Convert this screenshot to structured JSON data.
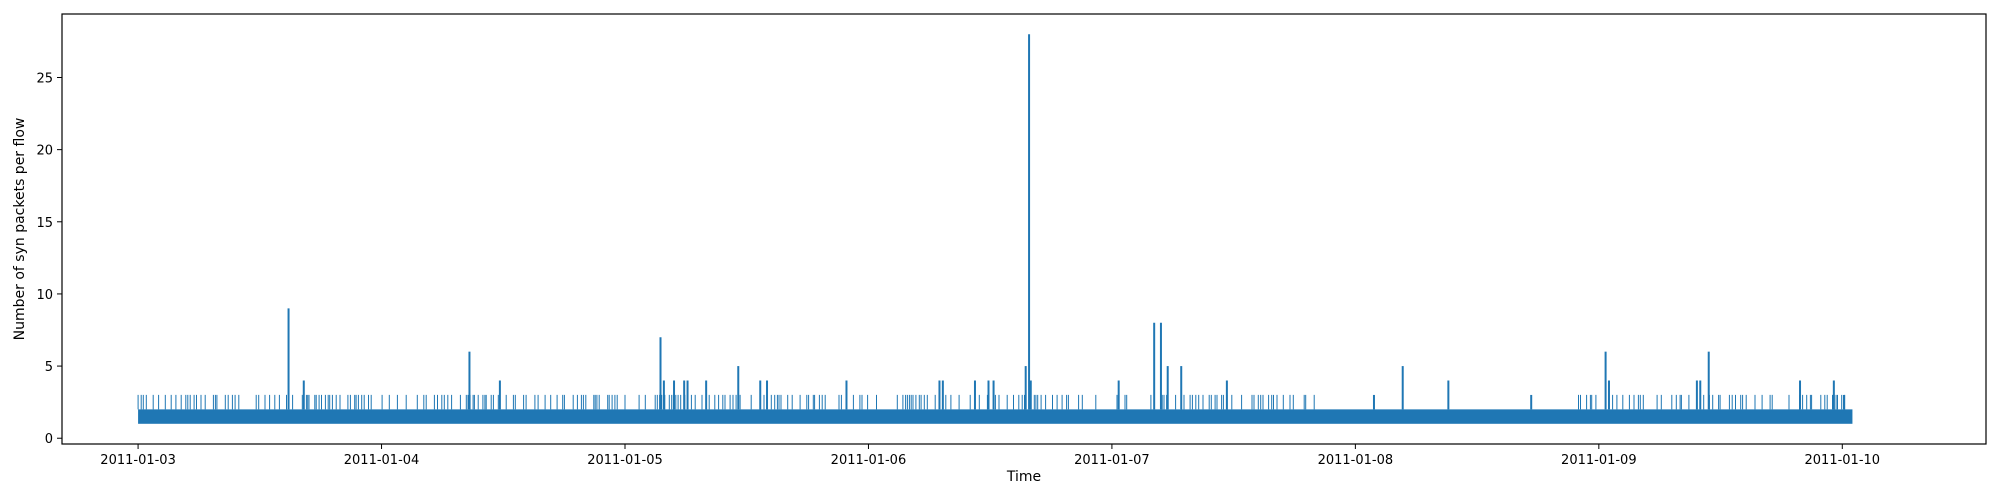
{
  "chart_data": {
    "type": "line",
    "title": "",
    "xlabel": "Time",
    "ylabel": "Number of syn packets per flow",
    "xlim": [
      "2011-01-02T16:30:00",
      "2011-01-10T14:10:00"
    ],
    "ylim": [
      -0.4,
      29.4
    ],
    "x_ticks": [
      "2011-01-03",
      "2011-01-04",
      "2011-01-05",
      "2011-01-06",
      "2011-01-07",
      "2011-01-08",
      "2011-01-09",
      "2011-01-10"
    ],
    "y_ticks": [
      0,
      5,
      10,
      15,
      20,
      25
    ],
    "grid": false,
    "legend": "none",
    "series": [
      {
        "color": "#1f77b4",
        "baseline_range": [
          1,
          2
        ],
        "baseline_period": [
          "2011-01-03T00:00:00",
          "2011-01-10T01:00:00"
        ],
        "peaks": [
          {
            "x": "2011-01-03T14:50:00",
            "y": 9
          },
          {
            "x": "2011-01-03T16:20:00",
            "y": 4
          },
          {
            "x": "2011-01-04T08:40:00",
            "y": 6
          },
          {
            "x": "2011-01-04T11:40:00",
            "y": 4
          },
          {
            "x": "2011-01-05T03:30:00",
            "y": 7
          },
          {
            "x": "2011-01-05T03:50:00",
            "y": 4
          },
          {
            "x": "2011-01-05T04:50:00",
            "y": 4
          },
          {
            "x": "2011-01-05T05:50:00",
            "y": 4
          },
          {
            "x": "2011-01-05T06:10:00",
            "y": 4
          },
          {
            "x": "2011-01-05T08:00:00",
            "y": 4
          },
          {
            "x": "2011-01-05T11:10:00",
            "y": 5
          },
          {
            "x": "2011-01-05T13:20:00",
            "y": 4
          },
          {
            "x": "2011-01-05T14:00:00",
            "y": 4
          },
          {
            "x": "2011-01-05T21:50:00",
            "y": 4
          },
          {
            "x": "2011-01-06T07:00:00",
            "y": 4
          },
          {
            "x": "2011-01-06T07:20:00",
            "y": 4
          },
          {
            "x": "2011-01-06T10:30:00",
            "y": 4
          },
          {
            "x": "2011-01-06T11:50:00",
            "y": 4
          },
          {
            "x": "2011-01-06T12:20:00",
            "y": 4
          },
          {
            "x": "2011-01-06T15:30:00",
            "y": 5
          },
          {
            "x": "2011-01-06T15:50:00",
            "y": 28
          },
          {
            "x": "2011-01-06T16:00:00",
            "y": 4
          },
          {
            "x": "2011-01-07T00:40:00",
            "y": 4
          },
          {
            "x": "2011-01-07T04:10:00",
            "y": 8
          },
          {
            "x": "2011-01-07T04:50:00",
            "y": 8
          },
          {
            "x": "2011-01-07T05:30:00",
            "y": 5
          },
          {
            "x": "2011-01-07T06:50:00",
            "y": 5
          },
          {
            "x": "2011-01-07T11:20:00",
            "y": 4
          },
          {
            "x": "2011-01-08T01:50:00",
            "y": 3
          },
          {
            "x": "2011-01-08T04:40:00",
            "y": 5
          },
          {
            "x": "2011-01-08T09:10:00",
            "y": 4
          },
          {
            "x": "2011-01-08T17:20:00",
            "y": 3
          },
          {
            "x": "2011-01-09T00:40:00",
            "y": 6
          },
          {
            "x": "2011-01-09T01:00:00",
            "y": 4
          },
          {
            "x": "2011-01-09T09:40:00",
            "y": 4
          },
          {
            "x": "2011-01-09T10:00:00",
            "y": 4
          },
          {
            "x": "2011-01-09T10:50:00",
            "y": 6
          },
          {
            "x": "2011-01-09T19:50:00",
            "y": 4
          },
          {
            "x": "2011-01-09T23:10:00",
            "y": 4
          },
          {
            "x": "2011-01-10T00:10:00",
            "y": 3
          }
        ],
        "level3_periods": [
          [
            "2011-01-03T00:00:00",
            "2011-01-06T22:30:00"
          ],
          [
            "2011-01-07T00:30:00",
            "2011-01-07T20:00:00"
          ],
          [
            "2011-01-08T22:00:00",
            "2011-01-10T01:00:00"
          ]
        ]
      }
    ]
  }
}
